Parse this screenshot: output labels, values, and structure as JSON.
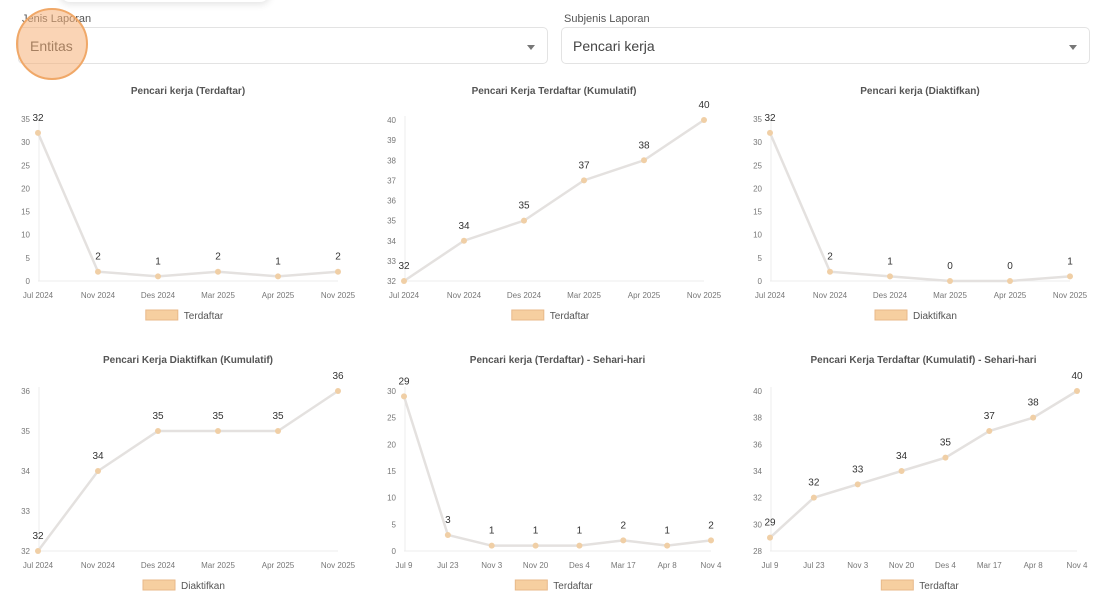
{
  "filters": {
    "jenis": {
      "label": "Jenis Laporan",
      "value": "Entitas"
    },
    "subjenis": {
      "label": "Subjenis Laporan",
      "value": "Pencari kerja"
    }
  },
  "colors": {
    "line": "#e4e1df",
    "point": "#f0cfa6",
    "legend_fill": "#f6cfa0",
    "legend_border": "#e8b98a"
  },
  "chart_data": [
    {
      "type": "line",
      "title": "Pencari kerja (Terdaftar)",
      "categories": [
        "Jul 2024",
        "Nov 2024",
        "Des 2024",
        "Mar 2025",
        "Apr 2025",
        "Nov 2025"
      ],
      "series": [
        {
          "name": "Terdaftar",
          "values": [
            32,
            2,
            1,
            2,
            1,
            2
          ]
        }
      ],
      "ylim": [
        0,
        35
      ],
      "yticks": [
        0,
        5,
        10,
        15,
        20,
        25,
        30,
        35
      ],
      "legend": "bottom",
      "grid": false
    },
    {
      "type": "line",
      "title": "Pencari Kerja Terdaftar (Kumulatif)",
      "categories": [
        "Jul 2024",
        "Nov 2024",
        "Des 2024",
        "Mar 2025",
        "Apr 2025",
        "Nov 2025"
      ],
      "series": [
        {
          "name": "Terdaftar",
          "values": [
            32,
            34,
            35,
            37,
            38,
            40
          ]
        }
      ],
      "ylim": [
        32,
        40
      ],
      "yticks": [
        32,
        33,
        34,
        35,
        36,
        37,
        38,
        39,
        40
      ],
      "legend": "bottom",
      "grid": false
    },
    {
      "type": "line",
      "title": "Pencari kerja (Diaktifkan)",
      "categories": [
        "Jul 2024",
        "Nov 2024",
        "Des 2024",
        "Mar 2025",
        "Apr 2025",
        "Nov 2025"
      ],
      "series": [
        {
          "name": "Diaktifkan",
          "values": [
            32,
            2,
            1,
            0,
            0,
            1
          ]
        }
      ],
      "ylim": [
        0,
        35
      ],
      "yticks": [
        0,
        5,
        10,
        15,
        20,
        25,
        30,
        35
      ],
      "legend": "bottom",
      "grid": false
    },
    {
      "type": "line",
      "title": "Pencari Kerja Diaktifkan (Kumulatif)",
      "categories": [
        "Jul 2024",
        "Nov 2024",
        "Des 2024",
        "Mar 2025",
        "Apr 2025",
        "Nov 2025"
      ],
      "series": [
        {
          "name": "Diaktifkan",
          "values": [
            32,
            34,
            35,
            35,
            35,
            36
          ]
        }
      ],
      "ylim": [
        32,
        36
      ],
      "yticks": [
        32,
        33,
        34,
        35,
        36
      ],
      "legend": "bottom",
      "grid": false
    },
    {
      "type": "line",
      "title": "Pencari kerja (Terdaftar) - Sehari-hari",
      "categories": [
        "Jul 9",
        "Jul 23",
        "Nov 3",
        "Nov 20",
        "Des 4",
        "Mar 17",
        "Apr 8",
        "Nov 4"
      ],
      "series": [
        {
          "name": "Terdaftar",
          "values": [
            29,
            3,
            1,
            1,
            1,
            2,
            1,
            2
          ]
        }
      ],
      "ylim": [
        0,
        30
      ],
      "yticks": [
        0,
        5,
        10,
        15,
        20,
        25,
        30
      ],
      "legend": "bottom",
      "grid": false
    },
    {
      "type": "line",
      "title": "Pencari Kerja Terdaftar (Kumulatif) - Sehari-hari",
      "categories": [
        "Jul 9",
        "Jul 23",
        "Nov 3",
        "Nov 20",
        "Des 4",
        "Mar 17",
        "Apr 8",
        "Nov 4"
      ],
      "series": [
        {
          "name": "Terdaftar",
          "values": [
            29,
            32,
            33,
            34,
            35,
            37,
            38,
            40
          ]
        }
      ],
      "ylim": [
        28,
        40
      ],
      "yticks": [
        28,
        30,
        32,
        34,
        36,
        38,
        40
      ],
      "legend": "bottom",
      "grid": false
    }
  ]
}
